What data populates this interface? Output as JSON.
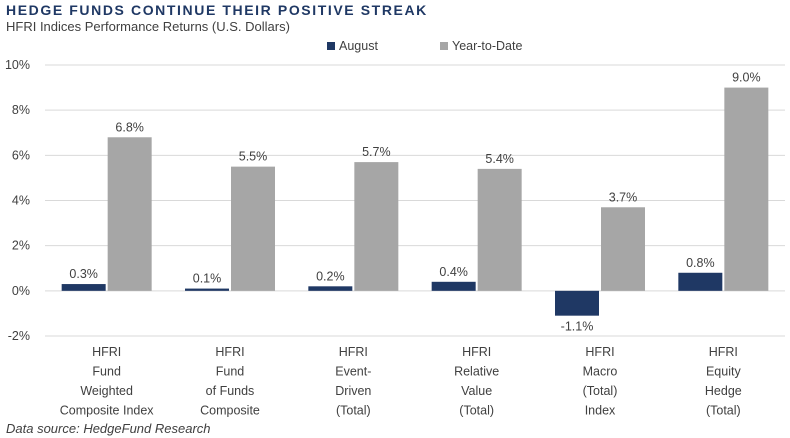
{
  "header": {
    "title": "HEDGE FUNDS CONTINUE THEIR POSITIVE STREAK",
    "subtitle": "HFRI Indices Performance Returns (U.S. Dollars)"
  },
  "footer": {
    "source": "Data source: HedgeFund Research"
  },
  "chart_data": {
    "type": "bar",
    "categories": [
      [
        "HFRI",
        "Fund",
        "Weighted",
        "Composite Index"
      ],
      [
        "HFRI",
        "Fund",
        "of Funds",
        "Composite"
      ],
      [
        "HFRI",
        "Event-",
        "Driven",
        "(Total)"
      ],
      [
        "HFRI",
        "Relative",
        "Value",
        "(Total)"
      ],
      [
        "HFRI",
        "Macro",
        "(Total)",
        "Index"
      ],
      [
        "HFRI",
        "Equity",
        "Hedge",
        "(Total)"
      ]
    ],
    "series": [
      {
        "name": "August",
        "color": "#1f3864",
        "values": [
          0.3,
          0.1,
          0.2,
          0.4,
          -1.1,
          0.8
        ],
        "labels": [
          "0.3%",
          "0.1%",
          "0.2%",
          "0.4%",
          "-1.1%",
          "0.8%"
        ]
      },
      {
        "name": "Year-to-Date",
        "color": "#a6a6a6",
        "values": [
          6.8,
          5.5,
          5.7,
          5.4,
          3.7,
          9.0
        ],
        "labels": [
          "6.8%",
          "5.5%",
          "5.7%",
          "5.4%",
          "3.7%",
          "9.0%"
        ]
      }
    ],
    "ylim": [
      -2,
      10
    ],
    "yticks": [
      -2,
      0,
      2,
      4,
      6,
      8,
      10
    ],
    "ytick_labels": [
      "-2%",
      "0%",
      "2%",
      "4%",
      "6%",
      "8%",
      "10%"
    ],
    "grid": true,
    "legend_position": "top"
  }
}
